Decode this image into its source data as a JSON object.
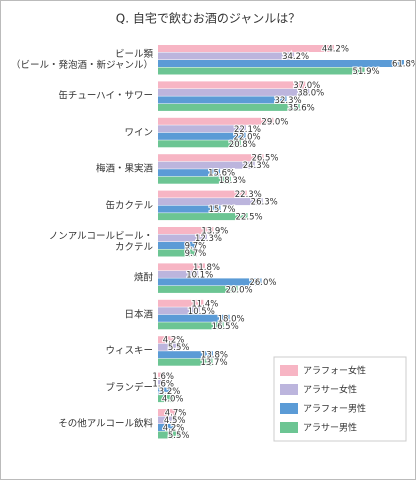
{
  "chart_data": {
    "type": "bar",
    "orientation": "horizontal",
    "title": "Q. 自宅で飲むお酒のジャンルは？",
    "categories": [
      "ビール類\n（ビール・発泡酒・新ジャンル）",
      "缶チューハイ・サワー",
      "ワイン",
      "梅酒・果実酒",
      "缶カクテル",
      "ノンアルコールビール・\nカクテル",
      "焼酎",
      "日本酒",
      "ウィスキー",
      "ブランデー",
      "その他アルコール飲料"
    ],
    "series": [
      {
        "name": "アラフォー女性",
        "color": "#f7b5c4",
        "values": [
          44.2,
          37.0,
          29.0,
          26.5,
          22.3,
          13.9,
          11.8,
          11.4,
          4.2,
          1.6,
          4.7
        ],
        "value_labels": [
          "44.2%",
          "37.0%",
          "29.0%",
          "26.5%",
          "22.3%",
          "13.9%",
          "11.8%",
          "11.4%",
          "4.2%",
          "1.6%",
          "4.7%"
        ]
      },
      {
        "name": "アラサー女性",
        "color": "#bcb5dd",
        "values": [
          34.2,
          38.0,
          22.1,
          24.3,
          26.3,
          12.3,
          10.1,
          10.5,
          5.5,
          1.6,
          4.5
        ],
        "value_labels": [
          "34.2%",
          "38.0%",
          "22.1%",
          "24.3%",
          "26.3%",
          "12.3%",
          "10.1%",
          "10.5%",
          "5.5%",
          "1.6%",
          "4.5%"
        ]
      },
      {
        "name": "アラフォー男性",
        "color": "#5b9bd6",
        "values": [
          61.8,
          32.3,
          22.0,
          15.6,
          15.7,
          9.7,
          26.0,
          18.0,
          13.8,
          3.2,
          4.2
        ],
        "value_labels": [
          "61.8%",
          "32.3%",
          "22.0%",
          "15.6%",
          "15.7%",
          "9.7%",
          "26.0%",
          "18.0%",
          "13.8%",
          "3.2%",
          "4.2%"
        ]
      },
      {
        "name": "アラサー男性",
        "color": "#6cc593",
        "values": [
          51.9,
          35.6,
          20.8,
          18.3,
          22.5,
          9.7,
          20.0,
          16.5,
          13.7,
          4.0,
          5.5
        ],
        "value_labels": [
          "51.9%",
          "35.6%",
          "20.8%",
          "18.3%",
          "22.5%",
          "9.7%",
          "20.0%",
          "16.5%",
          "13.7%",
          "4.0%",
          "5.5%"
        ]
      }
    ],
    "legend": "bottom-right"
  }
}
